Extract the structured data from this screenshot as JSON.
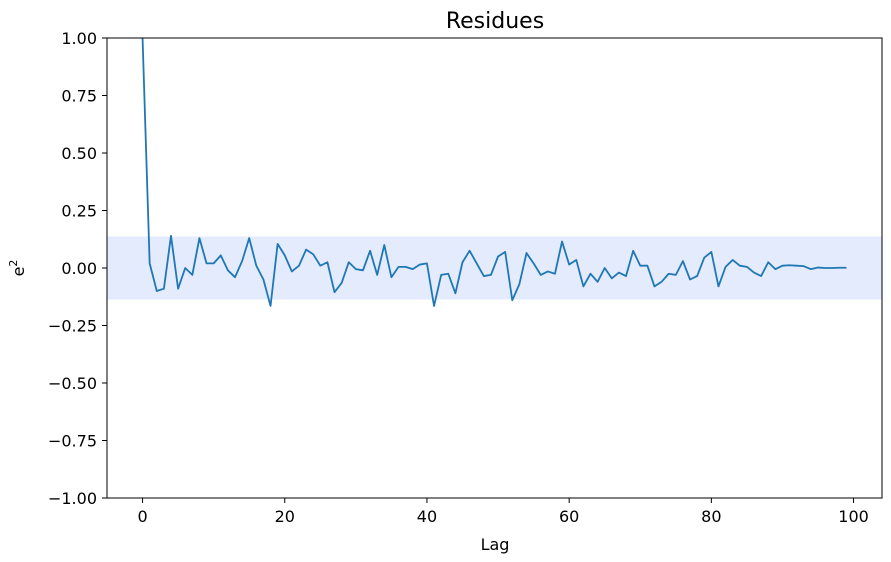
{
  "chart_data": {
    "type": "line",
    "title": "Residues",
    "xlabel": "Lag",
    "ylabel_base": "e",
    "ylabel_sup": "2",
    "xlim": [
      -5,
      104
    ],
    "ylim": [
      -1.0,
      1.0
    ],
    "xticks": [
      0,
      20,
      40,
      60,
      80,
      100
    ],
    "xtick_labels": [
      "0",
      "20",
      "40",
      "60",
      "80",
      "100"
    ],
    "yticks": [
      -1.0,
      -0.75,
      -0.5,
      -0.25,
      0.0,
      0.25,
      0.5,
      0.75,
      1.0
    ],
    "ytick_labels": [
      "−1.00",
      "−0.75",
      "−0.50",
      "−0.25",
      "0.00",
      "0.25",
      "0.50",
      "0.75",
      "1.00"
    ],
    "confidence_band": [
      -0.137,
      0.137
    ],
    "colors": {
      "line": "#1f77b4",
      "band": "#e3ebfd"
    },
    "grid": false,
    "series": [
      {
        "x": [
          0,
          1,
          2,
          3,
          4,
          5,
          6,
          7,
          8,
          9,
          10,
          11,
          12,
          13,
          14,
          15,
          16,
          17,
          18,
          19,
          20,
          21,
          22,
          23,
          24,
          25,
          26,
          27,
          28,
          29,
          30,
          31,
          32,
          33,
          34,
          35,
          36,
          37,
          38,
          39,
          40,
          41,
          42,
          43,
          44,
          45,
          46,
          47,
          48,
          49,
          50,
          51,
          52,
          53,
          54,
          55,
          56,
          57,
          58,
          59,
          60,
          61,
          62,
          63,
          64,
          65,
          66,
          67,
          68,
          69,
          70,
          71,
          72,
          73,
          74,
          75,
          76,
          77,
          78,
          79,
          80,
          81,
          82,
          83,
          84,
          85,
          86,
          87,
          88,
          89,
          90,
          91,
          92,
          93,
          94,
          95,
          96,
          97,
          98,
          99
        ],
        "values": [
          1.0,
          0.02,
          -0.1,
          -0.09,
          0.14,
          -0.09,
          0.0,
          -0.03,
          0.13,
          0.02,
          0.02,
          0.055,
          -0.01,
          -0.04,
          0.03,
          0.13,
          0.01,
          -0.05,
          -0.165,
          0.105,
          0.055,
          -0.015,
          0.01,
          0.08,
          0.06,
          0.01,
          0.025,
          -0.105,
          -0.065,
          0.025,
          -0.005,
          -0.01,
          0.075,
          -0.03,
          0.1,
          -0.04,
          0.005,
          0.005,
          -0.005,
          0.015,
          0.02,
          -0.165,
          -0.03,
          -0.025,
          -0.11,
          0.025,
          0.075,
          0.02,
          -0.035,
          -0.03,
          0.05,
          0.07,
          -0.14,
          -0.07,
          0.065,
          0.02,
          -0.03,
          -0.015,
          -0.025,
          0.115,
          0.015,
          0.035,
          -0.08,
          -0.025,
          -0.06,
          0.0,
          -0.045,
          -0.02,
          -0.035,
          0.075,
          0.01,
          0.01,
          -0.08,
          -0.06,
          -0.025,
          -0.03,
          0.03,
          -0.05,
          -0.035,
          0.045,
          0.07,
          -0.08,
          0.005,
          0.035,
          0.01,
          0.005,
          -0.02,
          -0.035,
          0.025,
          -0.005,
          0.01,
          0.012,
          0.01,
          0.008,
          -0.005,
          0.002,
          0.0,
          0.0,
          0.001,
          0.001
        ]
      }
    ]
  }
}
